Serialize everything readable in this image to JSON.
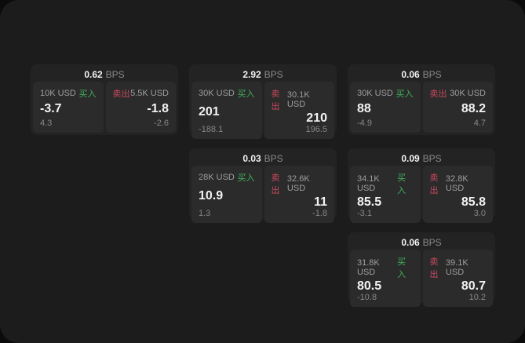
{
  "theme": {
    "page_bg": "#0b0b0b",
    "window_bg": "#1c1c1c",
    "card_bg": "#232323",
    "panel_bg": "#2b2b2b",
    "buy_color": "#41b05c",
    "sell_color": "#c8485f",
    "label_color": "#9e9e9e",
    "value_color": "#f2f2f2",
    "secondary_color": "#878787",
    "unit_color": "#8a8a8a"
  },
  "labels": {
    "bps_unit": "BPS",
    "buy": "买入",
    "sell": "卖出"
  },
  "cards": [
    {
      "bps": "0.62",
      "buy": {
        "amount": "10K USD",
        "price": "-3.7",
        "secondary": "4.3"
      },
      "sell": {
        "amount": "5.5K USD",
        "price": "-1.8",
        "secondary": "-2.6"
      }
    },
    {
      "bps": "2.92",
      "buy": {
        "amount": "30K USD",
        "price": "201",
        "secondary": "-188.1"
      },
      "sell": {
        "amount": "30.1K USD",
        "price": "210",
        "secondary": "196.5"
      }
    },
    {
      "bps": "0.06",
      "buy": {
        "amount": "30K USD",
        "price": "88",
        "secondary": "-4.9"
      },
      "sell": {
        "amount": "30K USD",
        "price": "88.2",
        "secondary": "4.7"
      }
    },
    {
      "bps": "0.03",
      "buy": {
        "amount": "28K USD",
        "price": "10.9",
        "secondary": "1.3"
      },
      "sell": {
        "amount": "32.6K USD",
        "price": "11",
        "secondary": "-1.8"
      }
    },
    {
      "bps": "0.09",
      "buy": {
        "amount": "34.1K USD",
        "price": "85.5",
        "secondary": "-3.1"
      },
      "sell": {
        "amount": "32.8K USD",
        "price": "85.8",
        "secondary": "3.0"
      }
    },
    {
      "bps": "0.06",
      "buy": {
        "amount": "31.8K USD",
        "price": "80.5",
        "secondary": "-10.8"
      },
      "sell": {
        "amount": "39.1K USD",
        "price": "80.7",
        "secondary": "10.2"
      }
    }
  ]
}
